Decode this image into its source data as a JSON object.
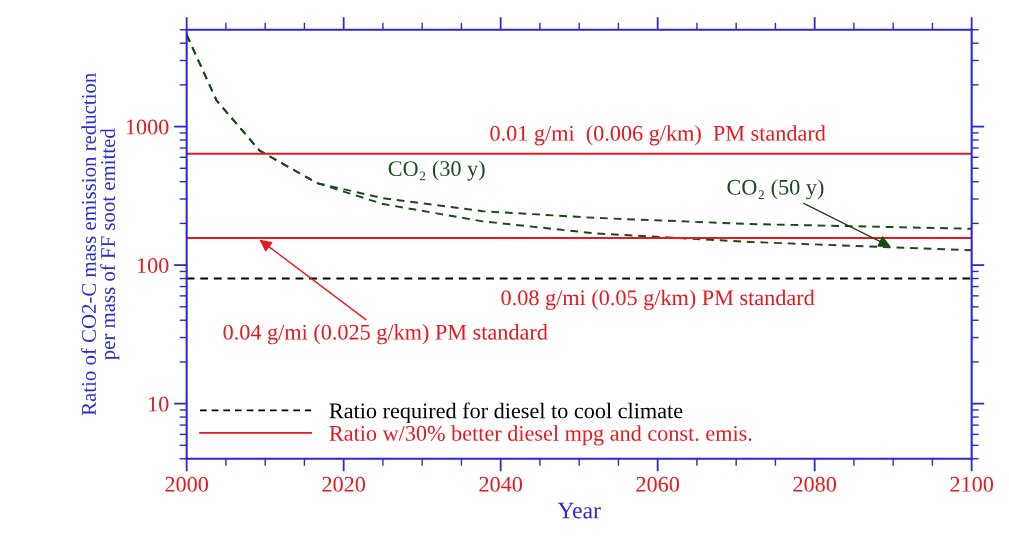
{
  "chart_data": {
    "type": "line",
    "xlabel": "Year",
    "ylabel": "Ratio of CO2-C mass emission reduction\nper mass of FF soot emitted",
    "xlim": [
      2000,
      2100
    ],
    "xticks": [
      2000,
      2020,
      2040,
      2060,
      2080,
      2100
    ],
    "ylim": [
      4,
      5000
    ],
    "yticks": [
      10,
      100,
      1000
    ],
    "log": "y",
    "grid": false,
    "legend": "bottom left",
    "marker": "none",
    "series": [
      {
        "color": "#1a4a1a",
        "line_style": "dashed",
        "x": [
          2000,
          2003.8,
          2009.3,
          2016.6,
          2025,
          2037.7,
          2052.2,
          2071.7,
          2100
        ],
        "values": [
          4600,
          1545,
          670,
          391,
          304,
          245,
          219,
          198,
          183
        ]
      },
      {
        "color": "#1a4a1a",
        "line_style": "dashed",
        "x": [
          2000,
          2003.8,
          2009.3,
          2016.6,
          2025,
          2037.7,
          2052.2,
          2071.7,
          2100
        ],
        "values": [
          4600,
          1545,
          670,
          391,
          276,
          207,
          169,
          147,
          128
        ]
      },
      {
        "name": "Ratio required for diesel to cool climate",
        "color": "#000000",
        "line_style": "dashed",
        "x": [
          2000,
          2100
        ],
        "values": [
          80,
          80
        ]
      },
      {
        "name": "Ratio w/30% better diesel mpg and const. emis.",
        "color": "#e8181e",
        "line_style": "solid",
        "x": [
          2000,
          2100
        ],
        "values": [
          637,
          637
        ]
      },
      {
        "color": "#e8181e",
        "line_style": "solid",
        "x": [
          2000,
          2100
        ],
        "values": [
          157,
          157
        ]
      }
    ],
    "annotations": [
      {
        "text": "0.01 g/mi  (0.006 g/km)  PM standard",
        "x": 2060,
        "y": 637
      },
      {
        "text": "0.08 g/mi (0.05 g/km) PM standard",
        "x": 2060,
        "y": 80
      },
      {
        "text": "0.04 g/mi (0.025 g/km) PM standard",
        "x": 2009,
        "y": 157
      },
      {
        "text": "CO₂ (30 y)",
        "x": 2038,
        "y": 245
      },
      {
        "text": "CO₂ (50 y)",
        "x": 2090,
        "y": 133
      }
    ]
  }
}
